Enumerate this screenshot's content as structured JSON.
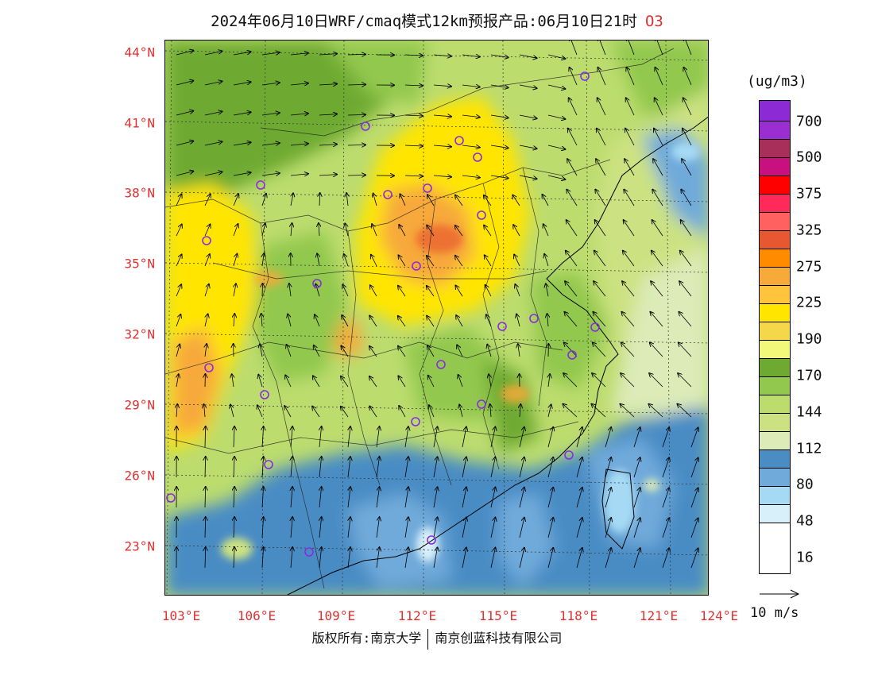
{
  "title": {
    "text": "2024年06月10日WRF/cmaq模式12km预报产品:06月10日21时",
    "species": "O3"
  },
  "axes": {
    "lat_labels": [
      "44°N",
      "41°N",
      "38°N",
      "35°N",
      "32°N",
      "29°N",
      "26°N",
      "23°N"
    ],
    "lon_labels": [
      "103°E",
      "106°E",
      "109°E",
      "112°E",
      "115°E",
      "118°E",
      "121°E",
      "124°E"
    ]
  },
  "legend": {
    "unit": "(ug/m3)",
    "levels": [
      {
        "label": "700",
        "color": "#9A2ED0"
      },
      {
        "label": "500",
        "color": "#A82F5A"
      },
      {
        "label": "375",
        "color": "#C8107E"
      },
      {
        "label": "325",
        "color": "#FF0000"
      },
      {
        "label": "275",
        "color": "#FF2A5A"
      },
      {
        "label": "225",
        "color": "#FF6060"
      },
      {
        "label": "190",
        "color": "#E85830"
      },
      {
        "label": "170",
        "color": "#FF8C00"
      },
      {
        "label": "144",
        "color": "#F7A93A"
      },
      {
        "label": "112",
        "color": "#FFC43C"
      },
      {
        "label": "80",
        "color": "#FFE500"
      },
      {
        "label": "48",
        "color": "#F5D84A"
      },
      {
        "label": "16",
        "color": "#F2F97A"
      }
    ],
    "lower_colors": [
      "#6EAA32",
      "#92C84E",
      "#BCDC6E",
      "#CCE282",
      "#DCEBB8",
      "#4A8CC4",
      "#70AADA",
      "#A6DAF4",
      "#D8F0FA",
      "#FFFFFF"
    ],
    "wind_reference": "10 m/s"
  },
  "footer": {
    "copyright": "版权所有:南京大学",
    "company": "南京创蓝科技有限公司"
  },
  "colors": {
    "label_red": "#e03030",
    "station_marker": "#8A2BE2"
  }
}
